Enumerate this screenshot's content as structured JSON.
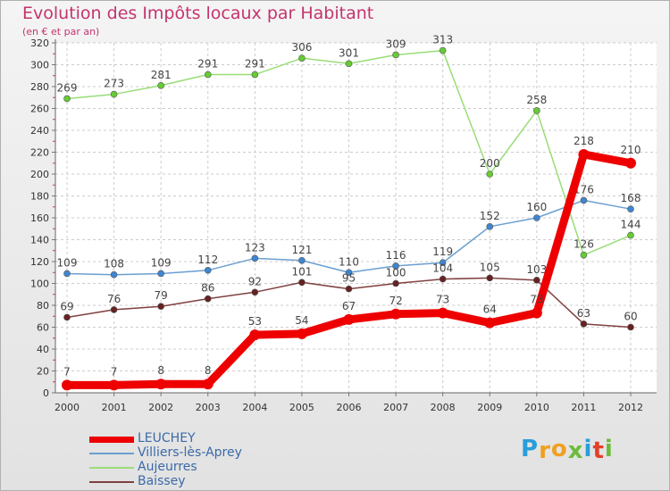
{
  "chart_data": {
    "type": "line",
    "title": "Evolution des Impôts locaux par Habitant",
    "subtitle": "(en € et par an)",
    "xlabel": "",
    "ylabel": "",
    "ylim": [
      0,
      320
    ],
    "ytick_step": 20,
    "grid": true,
    "x": [
      "2000",
      "2001",
      "2002",
      "2003",
      "2004",
      "2005",
      "2006",
      "2007",
      "2008",
      "2009",
      "2010",
      "2011",
      "2012"
    ],
    "series": [
      {
        "name": "LEUCHEY",
        "color": "#ee0000",
        "marker": "#ee0000",
        "emphasis": true,
        "values": [
          7,
          7,
          8,
          8,
          53,
          54,
          67,
          72,
          73,
          64,
          73,
          218,
          210
        ],
        "labels": [
          "7",
          "7",
          "8",
          "8",
          "53",
          "54",
          "67",
          "72",
          "73",
          "64",
          "73",
          "218",
          "210"
        ]
      },
      {
        "name": "Villiers-lès-Aprey",
        "color": "#6b9fd1",
        "marker": "#3f86d0",
        "emphasis": false,
        "values": [
          109,
          108,
          109,
          112,
          123,
          121,
          110,
          116,
          119,
          152,
          160,
          176,
          168
        ],
        "labels": [
          "109",
          "108",
          "109",
          "112",
          "123",
          "121",
          "110",
          "116",
          "119",
          "152",
          "160",
          "176",
          "168"
        ]
      },
      {
        "name": "Aujeurres",
        "color": "#99dd77",
        "marker": "#66cc33",
        "emphasis": false,
        "values": [
          269,
          273,
          281,
          291,
          291,
          306,
          301,
          309,
          313,
          200,
          258,
          126,
          144
        ],
        "labels": [
          "269",
          "273",
          "281",
          "291",
          "291",
          "306",
          "301",
          "309",
          "313",
          "200",
          "258",
          "126",
          "144"
        ]
      },
      {
        "name": "Baissey",
        "color": "#804040",
        "marker": "#662222",
        "emphasis": false,
        "values": [
          69,
          76,
          79,
          86,
          92,
          101,
          95,
          100,
          104,
          105,
          103,
          63,
          60
        ],
        "labels": [
          "69",
          "76",
          "79",
          "86",
          "92",
          "101",
          "95",
          "100",
          "104",
          "105",
          "103",
          "63",
          "60"
        ]
      }
    ]
  },
  "logo": {
    "letters": [
      "P",
      "r",
      "o",
      "x",
      "i",
      "t",
      "i"
    ],
    "colors": [
      "#2a9ed8",
      "#f0a020",
      "#f0a020",
      "#6dbb3c",
      "#2a9ed8",
      "#e2402a",
      "#6dbb3c"
    ]
  }
}
